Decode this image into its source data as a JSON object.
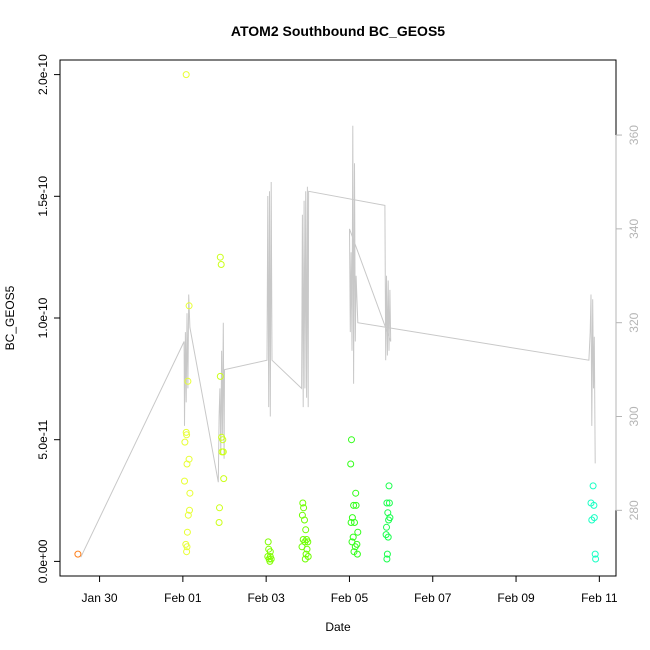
{
  "chart_data": {
    "type": "scatter",
    "title": "ATOM2 Southbound BC_GEOS5",
    "xlabel": "Date",
    "ylabel": "BC_GEOS5",
    "x_ticks": [
      "Jan 30",
      "Feb 01",
      "Feb 03",
      "Feb 05",
      "Feb 07",
      "Feb 09",
      "Feb 11"
    ],
    "x_tick_days": [
      30,
      32,
      34,
      36,
      38,
      40,
      42
    ],
    "xlim_days": [
      29.05,
      42.4
    ],
    "ylim": [
      -6e-12,
      2.06e-10
    ],
    "y_ticks": [
      "0.0e+00",
      "5.0e-11",
      "1.0e-10",
      "1.5e-10",
      "2.0e-10"
    ],
    "y_tick_values": [
      0,
      5e-11,
      1e-10,
      1.5e-10,
      2e-10
    ],
    "right_axis_ticks": [
      "280",
      "300",
      "320",
      "340",
      "360"
    ],
    "right_axis_values": [
      280,
      300,
      320,
      340,
      360
    ],
    "right_ylim": [
      266,
      376
    ],
    "scatter": {
      "marker": "open-circle",
      "points": [
        {
          "d": 29.48,
          "v": 3e-12,
          "color": "#ff7f1a"
        },
        {
          "d": 32.08,
          "v": 2e-10,
          "color": "#e8ff33"
        },
        {
          "d": 32.05,
          "v": 4.9e-11,
          "color": "#e8ff33"
        },
        {
          "d": 32.09,
          "v": 5.2e-11,
          "color": "#e8ff33"
        },
        {
          "d": 32.08,
          "v": 5.3e-11,
          "color": "#e8ff33"
        },
        {
          "d": 32.15,
          "v": 4.2e-11,
          "color": "#e8ff33"
        },
        {
          "d": 32.1,
          "v": 4e-11,
          "color": "#e8ff33"
        },
        {
          "d": 32.04,
          "v": 3.3e-11,
          "color": "#e8ff33"
        },
        {
          "d": 32.17,
          "v": 2.8e-11,
          "color": "#e8ff33"
        },
        {
          "d": 32.16,
          "v": 2.1e-11,
          "color": "#e8ff33"
        },
        {
          "d": 32.13,
          "v": 1.9e-11,
          "color": "#e8ff33"
        },
        {
          "d": 32.11,
          "v": 1.2e-11,
          "color": "#e8ff33"
        },
        {
          "d": 32.07,
          "v": 7e-12,
          "color": "#e8ff33"
        },
        {
          "d": 32.1,
          "v": 6e-12,
          "color": "#e8ff33"
        },
        {
          "d": 32.09,
          "v": 4e-12,
          "color": "#e8ff33"
        },
        {
          "d": 32.12,
          "v": 7.4e-11,
          "color": "#e8ff33"
        },
        {
          "d": 32.15,
          "v": 1.05e-10,
          "color": "#e8ff33"
        },
        {
          "d": 32.9,
          "v": 1.25e-10,
          "color": "#ccff1a"
        },
        {
          "d": 32.92,
          "v": 1.22e-10,
          "color": "#ccff1a"
        },
        {
          "d": 32.9,
          "v": 7.6e-11,
          "color": "#ccff1a"
        },
        {
          "d": 32.93,
          "v": 5.1e-11,
          "color": "#ccff1a"
        },
        {
          "d": 32.96,
          "v": 5e-11,
          "color": "#ccff1a"
        },
        {
          "d": 32.94,
          "v": 4.5e-11,
          "color": "#ccff1a"
        },
        {
          "d": 32.97,
          "v": 4.5e-11,
          "color": "#ccff1a"
        },
        {
          "d": 32.98,
          "v": 3.4e-11,
          "color": "#ccff1a"
        },
        {
          "d": 32.88,
          "v": 2.2e-11,
          "color": "#ccff1a"
        },
        {
          "d": 32.87,
          "v": 1.6e-11,
          "color": "#ccff1a"
        },
        {
          "d": 34.05,
          "v": 8e-12,
          "color": "#80ff00"
        },
        {
          "d": 34.06,
          "v": 5e-12,
          "color": "#80ff00"
        },
        {
          "d": 34.1,
          "v": 4e-12,
          "color": "#80ff00"
        },
        {
          "d": 34.04,
          "v": 2e-12,
          "color": "#80ff00"
        },
        {
          "d": 34.07,
          "v": 1e-12,
          "color": "#80ff00"
        },
        {
          "d": 34.12,
          "v": 1e-12,
          "color": "#80ff00"
        },
        {
          "d": 34.09,
          "v": 0,
          "color": "#80ff00"
        },
        {
          "d": 34.1,
          "v": 2e-12,
          "color": "#80ff00"
        },
        {
          "d": 34.88,
          "v": 2.4e-11,
          "color": "#6eff00"
        },
        {
          "d": 34.9,
          "v": 2.2e-11,
          "color": "#6eff00"
        },
        {
          "d": 34.87,
          "v": 1.9e-11,
          "color": "#6eff00"
        },
        {
          "d": 34.92,
          "v": 1.7e-11,
          "color": "#6eff00"
        },
        {
          "d": 34.95,
          "v": 1.3e-11,
          "color": "#6eff00"
        },
        {
          "d": 34.89,
          "v": 9e-12,
          "color": "#6eff00"
        },
        {
          "d": 34.93,
          "v": 8e-12,
          "color": "#6eff00"
        },
        {
          "d": 34.97,
          "v": 9e-12,
          "color": "#6eff00"
        },
        {
          "d": 35.0,
          "v": 8e-12,
          "color": "#6eff00"
        },
        {
          "d": 34.86,
          "v": 6e-12,
          "color": "#6eff00"
        },
        {
          "d": 34.98,
          "v": 5e-12,
          "color": "#6eff00"
        },
        {
          "d": 34.96,
          "v": 3e-12,
          "color": "#6eff00"
        },
        {
          "d": 35.01,
          "v": 2e-12,
          "color": "#6eff00"
        },
        {
          "d": 34.94,
          "v": 1e-12,
          "color": "#6eff00"
        },
        {
          "d": 36.05,
          "v": 5e-11,
          "color": "#33ff1a"
        },
        {
          "d": 36.03,
          "v": 4e-11,
          "color": "#33ff1a"
        },
        {
          "d": 36.15,
          "v": 2.8e-11,
          "color": "#33ff1a"
        },
        {
          "d": 36.1,
          "v": 2.3e-11,
          "color": "#33ff1a"
        },
        {
          "d": 36.16,
          "v": 2.3e-11,
          "color": "#33ff1a"
        },
        {
          "d": 36.07,
          "v": 1.8e-11,
          "color": "#33ff1a"
        },
        {
          "d": 36.04,
          "v": 1.6e-11,
          "color": "#33ff1a"
        },
        {
          "d": 36.12,
          "v": 1.6e-11,
          "color": "#33ff1a"
        },
        {
          "d": 36.2,
          "v": 1.2e-11,
          "color": "#33ff1a"
        },
        {
          "d": 36.09,
          "v": 1e-11,
          "color": "#33ff1a"
        },
        {
          "d": 36.06,
          "v": 8e-12,
          "color": "#33ff1a"
        },
        {
          "d": 36.18,
          "v": 7e-12,
          "color": "#33ff1a"
        },
        {
          "d": 36.14,
          "v": 6e-12,
          "color": "#33ff1a"
        },
        {
          "d": 36.11,
          "v": 4e-12,
          "color": "#33ff1a"
        },
        {
          "d": 36.19,
          "v": 3e-12,
          "color": "#33ff1a"
        },
        {
          "d": 36.95,
          "v": 3.1e-11,
          "color": "#1aff4d"
        },
        {
          "d": 36.9,
          "v": 2.4e-11,
          "color": "#1aff4d"
        },
        {
          "d": 36.96,
          "v": 2.4e-11,
          "color": "#1aff4d"
        },
        {
          "d": 36.92,
          "v": 2e-11,
          "color": "#1aff4d"
        },
        {
          "d": 36.97,
          "v": 1.8e-11,
          "color": "#1aff4d"
        },
        {
          "d": 36.94,
          "v": 1.7e-11,
          "color": "#1aff4d"
        },
        {
          "d": 36.89,
          "v": 1.4e-11,
          "color": "#1aff4d"
        },
        {
          "d": 36.88,
          "v": 1.1e-11,
          "color": "#1aff4d"
        },
        {
          "d": 36.93,
          "v": 1e-11,
          "color": "#1aff4d"
        },
        {
          "d": 36.91,
          "v": 3e-12,
          "color": "#1aff4d"
        },
        {
          "d": 36.9,
          "v": 1e-12,
          "color": "#1aff4d"
        },
        {
          "d": 41.85,
          "v": 3.1e-11,
          "color": "#1affc4"
        },
        {
          "d": 41.8,
          "v": 2.4e-11,
          "color": "#1affc4"
        },
        {
          "d": 41.87,
          "v": 2.3e-11,
          "color": "#1affc4"
        },
        {
          "d": 41.88,
          "v": 1.8e-11,
          "color": "#1affc4"
        },
        {
          "d": 41.82,
          "v": 1.7e-11,
          "color": "#1affc4"
        },
        {
          "d": 41.9,
          "v": 3e-12,
          "color": "#1affc4"
        },
        {
          "d": 41.91,
          "v": 1e-12,
          "color": "#1affc4"
        }
      ]
    },
    "line": {
      "color": "#c8c8c8",
      "points": [
        [
          29.55,
          270
        ],
        [
          32.03,
          316
        ],
        [
          32.04,
          298
        ],
        [
          32.06,
          318
        ],
        [
          32.08,
          303
        ],
        [
          32.1,
          322
        ],
        [
          32.12,
          306
        ],
        [
          32.14,
          326
        ],
        [
          32.17,
          319
        ],
        [
          32.85,
          286
        ],
        [
          32.87,
          300
        ],
        [
          32.89,
          306
        ],
        [
          32.91,
          292
        ],
        [
          32.93,
          314
        ],
        [
          32.95,
          296
        ],
        [
          32.97,
          320
        ],
        [
          32.99,
          291
        ],
        [
          33.0,
          310
        ],
        [
          34.02,
          312
        ],
        [
          34.04,
          347
        ],
        [
          34.06,
          302
        ],
        [
          34.08,
          348
        ],
        [
          34.1,
          300
        ],
        [
          34.12,
          350
        ],
        [
          34.14,
          312
        ],
        [
          34.85,
          306
        ],
        [
          34.87,
          343
        ],
        [
          34.89,
          302
        ],
        [
          34.91,
          346
        ],
        [
          34.93,
          306
        ],
        [
          34.95,
          348
        ],
        [
          34.97,
          304
        ],
        [
          34.99,
          349
        ],
        [
          35.01,
          302
        ],
        [
          35.02,
          348
        ],
        [
          36.85,
          345
        ],
        [
          36.87,
          312
        ],
        [
          36.89,
          330
        ],
        [
          36.91,
          313
        ],
        [
          36.93,
          329
        ],
        [
          36.95,
          314
        ],
        [
          36.97,
          327
        ],
        [
          36.99,
          316
        ],
        [
          36.0,
          340
        ],
        [
          36.02,
          318
        ],
        [
          36.04,
          335
        ],
        [
          36.06,
          314
        ],
        [
          36.08,
          362
        ],
        [
          36.1,
          307
        ],
        [
          36.12,
          354
        ],
        [
          36.14,
          316
        ],
        [
          36.16,
          330
        ],
        [
          36.2,
          320
        ],
        [
          41.75,
          312
        ],
        [
          41.78,
          318
        ],
        [
          41.8,
          326
        ],
        [
          41.82,
          298
        ],
        [
          41.84,
          325
        ],
        [
          41.86,
          306
        ],
        [
          41.88,
          317
        ],
        [
          41.9,
          290
        ]
      ]
    }
  }
}
